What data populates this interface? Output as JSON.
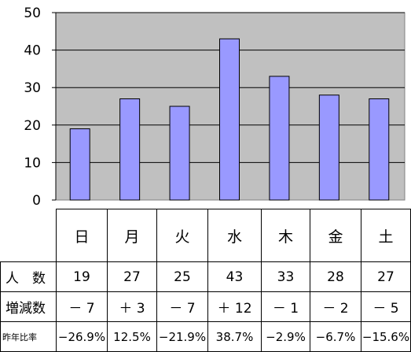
{
  "chart_data": {
    "type": "bar",
    "categories": [
      "日",
      "月",
      "火",
      "水",
      "木",
      "金",
      "土"
    ],
    "values": [
      19,
      27,
      25,
      43,
      33,
      28,
      27
    ],
    "ylim": [
      0,
      50
    ],
    "yticks": [
      0,
      10,
      20,
      30,
      40,
      50
    ],
    "grid": true,
    "legend": "none",
    "colors": {
      "bar": "#9999ff",
      "plot_bg": "#c0c0c0",
      "grid": "#000000"
    }
  },
  "table": {
    "rows": [
      {
        "label": "人　数",
        "values": [
          "19",
          "27",
          "25",
          "43",
          "33",
          "28",
          "27"
        ]
      },
      {
        "label": "増減数",
        "values": [
          "－ 7",
          "＋ 3",
          "－ 7",
          "＋ 12",
          "－ 1",
          "－ 2",
          "－ 5"
        ]
      },
      {
        "label": "昨年比率",
        "values": [
          "−26.9%",
          "12.5%",
          "−21.9%",
          "38.7%",
          "−2.9%",
          "−6.7%",
          "−15.6%"
        ]
      }
    ]
  }
}
